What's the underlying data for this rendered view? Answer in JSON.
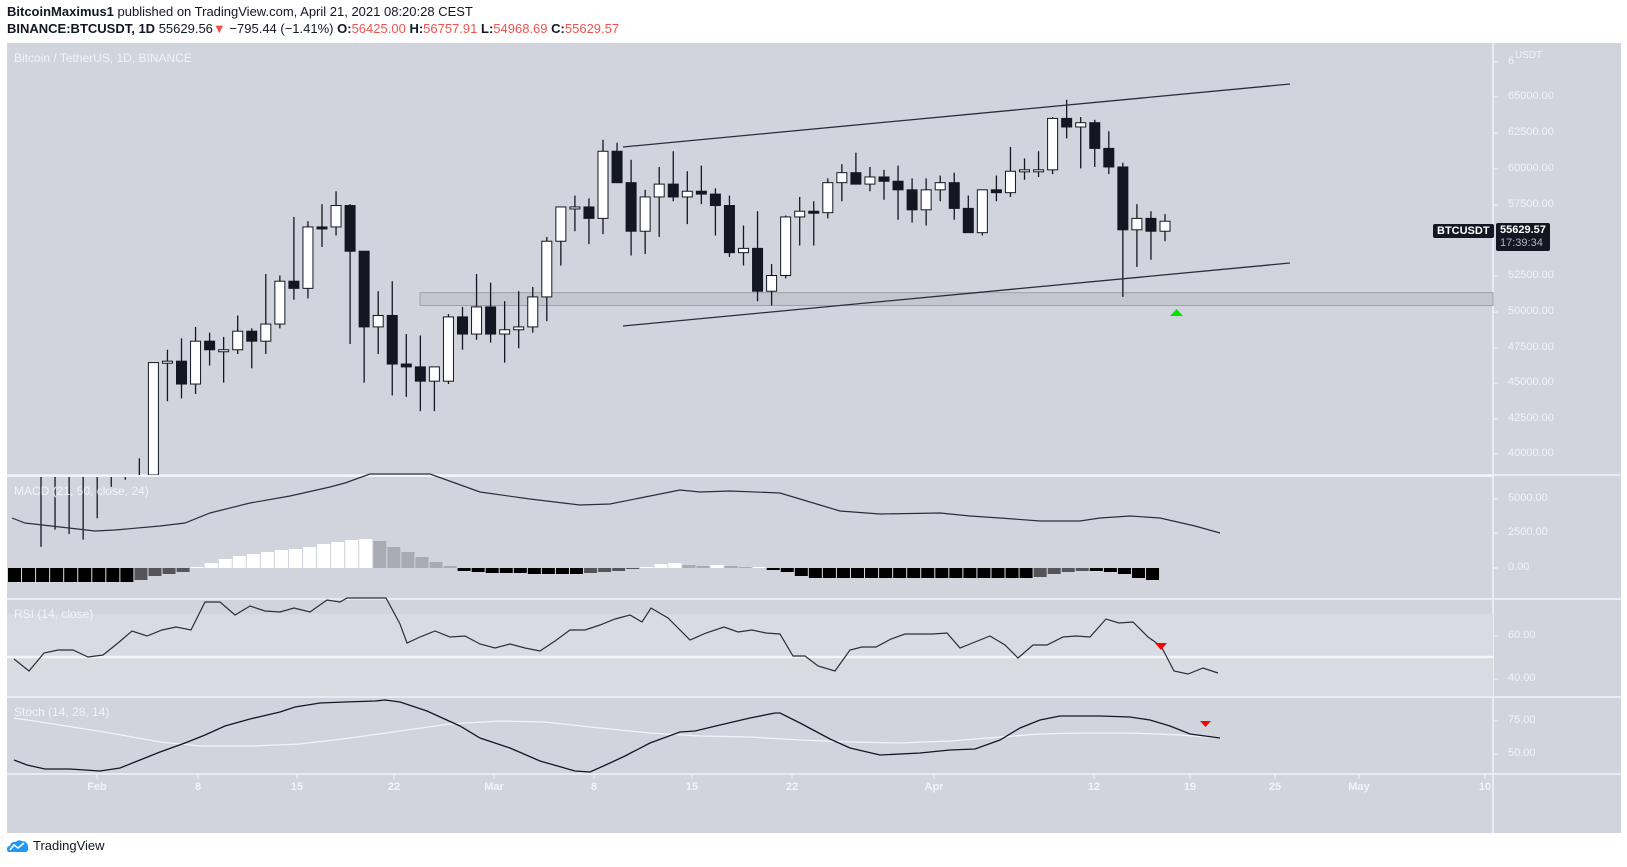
{
  "header": {
    "author": "BitcoinMaximus1",
    "published_text": "published on TradingView.com, April 21, 2021 08:20:28 CEST",
    "symbol": "BINANCE:BTCUSDT, 1D",
    "last": "55629.56",
    "change": "−795.44 (−1.41%)",
    "o_label": "O:",
    "o": "56425.00",
    "h_label": "H:",
    "h": "56757.91",
    "l_label": "L:",
    "l": "54968.69",
    "c_label": "C:",
    "c": "55629.57"
  },
  "main_pane": {
    "title": "Bitcoin / TetherUS, 1D, BINANCE",
    "currency": "USDT",
    "symbol_tag": "BTCUSDT",
    "price_tag": "55629.57",
    "countdown": "17:39:34",
    "y_ticks": [
      "65000.00",
      "62500.00",
      "60000.00",
      "57500.00",
      "55000.00",
      "52500.00",
      "50000.00",
      "47500.00",
      "45000.00",
      "42500.00",
      "40000.00"
    ]
  },
  "macd_pane": {
    "title": "MACD (21, 50, close, 24)",
    "y_ticks": [
      "5000.00",
      "2500.00",
      "0.00"
    ]
  },
  "rsi_pane": {
    "title": "RSI (14, close)",
    "y_ticks": [
      "60.00",
      "40.00"
    ]
  },
  "stoch_pane": {
    "title": "Stoch (14, 28, 14)",
    "y_ticks": [
      "75.00",
      "50.00"
    ]
  },
  "x_ticks": [
    "Feb",
    "8",
    "15",
    "22",
    "Mar",
    "8",
    "15",
    "22",
    "Apr",
    "12",
    "19",
    "25",
    "May",
    "10"
  ],
  "footer": {
    "brand": "TradingView"
  },
  "colors": {
    "bg": "#d1d4dc",
    "up": "#ffffff",
    "down": "#131722",
    "tag": "#131722",
    "signal_up": "#00e600",
    "signal_down": "#ff0000"
  },
  "chart_data": {
    "type": "candlestick",
    "title": "Bitcoin / TetherUS, 1D, BINANCE",
    "xlabel": "",
    "ylabel": "USDT",
    "ylim": [
      38500,
      66500
    ],
    "candles_start": "2021-01-28",
    "ohlc": [
      [
        30400,
        33500,
        30000,
        33100
      ],
      [
        33100,
        34700,
        32000,
        33300
      ],
      [
        33300,
        34400,
        32200,
        32600
      ],
      [
        32600,
        34000,
        32200,
        33500
      ],
      [
        33500,
        35500,
        33300,
        35500
      ],
      [
        35500,
        37700,
        35300,
        37600
      ],
      [
        37600,
        38200,
        36200,
        36900
      ],
      [
        36900,
        39700,
        36400,
        38200
      ],
      [
        38200,
        46300,
        38000,
        46400
      ],
      [
        46400,
        47300,
        43700,
        46500
      ],
      [
        46500,
        48100,
        43900,
        44900
      ],
      [
        44900,
        48900,
        44200,
        47900
      ],
      [
        47900,
        48500,
        46200,
        47300
      ],
      [
        47300,
        48200,
        45000,
        47300
      ],
      [
        47300,
        49700,
        47000,
        48600
      ],
      [
        48600,
        48800,
        46000,
        47900
      ],
      [
        47900,
        52600,
        47000,
        49100
      ],
      [
        49100,
        52500,
        48800,
        52100
      ],
      [
        52100,
        56600,
        50800,
        51600
      ],
      [
        51600,
        56300,
        50900,
        55900
      ],
      [
        55900,
        57500,
        54500,
        55800
      ],
      [
        55900,
        58400,
        55300,
        57400
      ],
      [
        57400,
        57500,
        47700,
        54200
      ],
      [
        54200,
        54200,
        45000,
        48900
      ],
      [
        48900,
        51400,
        47000,
        49700
      ],
      [
        49700,
        52100,
        44100,
        46300
      ],
      [
        46300,
        48400,
        44000,
        46100
      ],
      [
        46100,
        48300,
        43000,
        45100
      ],
      [
        45100,
        46000,
        43000,
        46100
      ],
      [
        45100,
        49800,
        44900,
        49600
      ],
      [
        49600,
        50300,
        47300,
        48400
      ],
      [
        48400,
        52600,
        48000,
        50300
      ],
      [
        50300,
        52000,
        47800,
        48400
      ],
      [
        48400,
        50700,
        46400,
        48700
      ],
      [
        48700,
        51400,
        47400,
        48900
      ],
      [
        48900,
        51700,
        48500,
        51000
      ],
      [
        51000,
        55200,
        49300,
        54900
      ],
      [
        54900,
        57200,
        53200,
        57300
      ],
      [
        57300,
        58100,
        55600,
        57300
      ],
      [
        57300,
        57900,
        54700,
        56500
      ],
      [
        56500,
        62000,
        55400,
        61200
      ],
      [
        61200,
        61800,
        59000,
        59000
      ],
      [
        59000,
        60600,
        53900,
        55600
      ],
      [
        55600,
        58500,
        54000,
        58000
      ],
      [
        58000,
        60100,
        55200,
        58900
      ],
      [
        58900,
        61200,
        57700,
        58000
      ],
      [
        58000,
        59800,
        56100,
        58400
      ],
      [
        58400,
        60200,
        57500,
        58200
      ],
      [
        58200,
        58600,
        55300,
        57400
      ],
      [
        57400,
        58100,
        53800,
        54100
      ],
      [
        54100,
        56000,
        53200,
        54400
      ],
      [
        54400,
        57000,
        50700,
        51400
      ],
      [
        51400,
        53300,
        50400,
        52500
      ],
      [
        52500,
        56700,
        52300,
        56600
      ],
      [
        56600,
        58000,
        54600,
        57000
      ],
      [
        57000,
        57700,
        54600,
        56900
      ],
      [
        56900,
        59300,
        56500,
        59000
      ],
      [
        59000,
        60300,
        57700,
        59700
      ],
      [
        59700,
        61100,
        58900,
        58900
      ],
      [
        58900,
        60100,
        58400,
        59400
      ],
      [
        59400,
        59900,
        57800,
        59100
      ],
      [
        59100,
        60200,
        56400,
        58500
      ],
      [
        58500,
        59300,
        56200,
        57100
      ],
      [
        57100,
        59300,
        56000,
        58500
      ],
      [
        58500,
        59500,
        57700,
        59000
      ],
      [
        59000,
        59700,
        56400,
        57200
      ],
      [
        57200,
        58100,
        55500,
        55500
      ],
      [
        55500,
        58500,
        55300,
        58500
      ],
      [
        58500,
        59500,
        57700,
        58300
      ],
      [
        58300,
        61500,
        58000,
        59800
      ],
      [
        59800,
        60700,
        59200,
        59900
      ],
      [
        59900,
        61200,
        59400,
        59900
      ],
      [
        59900,
        63600,
        59600,
        63500
      ],
      [
        63500,
        64800,
        62100,
        62900
      ],
      [
        62900,
        63600,
        60000,
        63200
      ],
      [
        63200,
        63400,
        60100,
        61400
      ],
      [
        61400,
        62600,
        59600,
        60100
      ],
      [
        60100,
        60400,
        51000,
        55700
      ],
      [
        55700,
        57500,
        53100,
        56500
      ],
      [
        56500,
        57000,
        53600,
        55600
      ],
      [
        55600,
        56800,
        54900,
        56300
      ]
    ],
    "channel": {
      "upper": [
        [
          "2021-03-10",
          61500
        ],
        [
          "2021-04-25",
          65800
        ]
      ],
      "lower": [
        [
          "2021-03-10",
          49100
        ],
        [
          "2021-04-25",
          53300
        ]
      ]
    },
    "support_zone": [
      50400,
      51300
    ],
    "signals": [
      {
        "type": "up-arrow",
        "date": "2021-04-18",
        "price": 50000,
        "color": "#00e600"
      }
    ],
    "indicators": {
      "macd": {
        "params": "21, 50, close, 24",
        "ylim": [
          -1000,
          6500
        ]
      },
      "rsi": {
        "params": "14, close",
        "ylim": [
          30,
          75
        ],
        "signal": {
          "type": "down-arrow",
          "date": "2021-04-17",
          "value": 56
        }
      },
      "stoch": {
        "params": "14, 28, 14",
        "ylim": [
          40,
          95
        ],
        "signal": {
          "type": "down-arrow",
          "date": "2021-04-20",
          "value": 75
        }
      }
    }
  }
}
